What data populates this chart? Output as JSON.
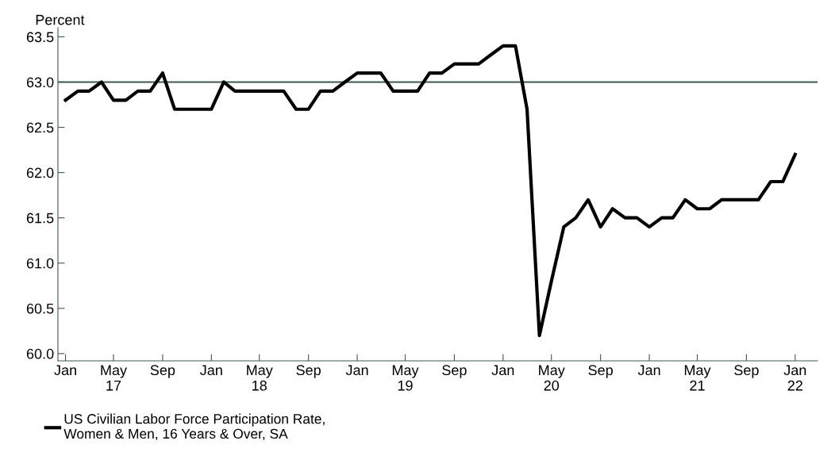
{
  "chart_data": {
    "type": "line",
    "ylabel": "Percent",
    "x": [
      "2017-01",
      "2017-02",
      "2017-03",
      "2017-04",
      "2017-05",
      "2017-06",
      "2017-07",
      "2017-08",
      "2017-09",
      "2017-10",
      "2017-11",
      "2017-12",
      "2018-01",
      "2018-02",
      "2018-03",
      "2018-04",
      "2018-05",
      "2018-06",
      "2018-07",
      "2018-08",
      "2018-09",
      "2018-10",
      "2018-11",
      "2018-12",
      "2019-01",
      "2019-02",
      "2019-03",
      "2019-04",
      "2019-05",
      "2019-06",
      "2019-07",
      "2019-08",
      "2019-09",
      "2019-10",
      "2019-11",
      "2019-12",
      "2020-01",
      "2020-02",
      "2020-03",
      "2020-04",
      "2020-05",
      "2020-06",
      "2020-07",
      "2020-08",
      "2020-09",
      "2020-10",
      "2020-11",
      "2020-12",
      "2021-01",
      "2021-02",
      "2021-03",
      "2021-04",
      "2021-05",
      "2021-06",
      "2021-07",
      "2021-08",
      "2021-09",
      "2021-10",
      "2021-11",
      "2021-12",
      "2022-01"
    ],
    "series": [
      {
        "name": "US Civilian Labor Force Participation Rate,\nWomen & Men, 16 Years & Over, SA",
        "color": "#000000",
        "values": [
          62.8,
          62.9,
          62.9,
          63.0,
          62.8,
          62.8,
          62.9,
          62.9,
          63.1,
          62.7,
          62.7,
          62.7,
          62.7,
          63.0,
          62.9,
          62.9,
          62.9,
          62.9,
          62.9,
          62.7,
          62.7,
          62.9,
          62.9,
          63.0,
          63.1,
          63.1,
          63.1,
          62.9,
          62.9,
          62.9,
          63.1,
          63.1,
          63.2,
          63.2,
          63.2,
          63.3,
          63.4,
          63.4,
          62.7,
          60.2,
          60.8,
          61.4,
          61.5,
          61.7,
          61.4,
          61.6,
          61.5,
          61.5,
          61.4,
          61.5,
          61.5,
          61.7,
          61.6,
          61.6,
          61.7,
          61.7,
          61.7,
          61.7,
          61.9,
          61.9,
          62.2
        ]
      }
    ],
    "ylim": [
      59.92,
      63.6
    ],
    "yticks": [
      {
        "value": 60,
        "label": "60.0"
      },
      {
        "value": 60.5,
        "label": "60.5"
      },
      {
        "value": 61,
        "label": "61.0"
      },
      {
        "value": 61.5,
        "label": "61.5"
      },
      {
        "value": 62,
        "label": "62.0"
      },
      {
        "value": 62.5,
        "label": "62.5"
      },
      {
        "value": 63,
        "label": "63.0"
      },
      {
        "value": 63.5,
        "label": "63.5"
      }
    ],
    "xlim": [
      "2016-12-13",
      "2022-02-26"
    ],
    "xticks": [
      {
        "value": "2017-01",
        "label": "Jan"
      },
      {
        "value": "2017-05",
        "label": "May\n17"
      },
      {
        "value": "2017-09",
        "label": "Sep"
      },
      {
        "value": "2018-01",
        "label": "Jan"
      },
      {
        "value": "2018-05",
        "label": "May\n18"
      },
      {
        "value": "2018-09",
        "label": "Sep"
      },
      {
        "value": "2019-01",
        "label": "Jan"
      },
      {
        "value": "2019-05",
        "label": "May\n19"
      },
      {
        "value": "2019-09",
        "label": "Sep"
      },
      {
        "value": "2020-01",
        "label": "Jan"
      },
      {
        "value": "2020-05",
        "label": "May\n20"
      },
      {
        "value": "2020-09",
        "label": "Sep"
      },
      {
        "value": "2021-01",
        "label": "Jan"
      },
      {
        "value": "2021-05",
        "label": "May\n21"
      },
      {
        "value": "2021-09",
        "label": "Sep"
      },
      {
        "value": "2022-01",
        "label": "Jan\n22"
      }
    ],
    "ref_lines": [
      {
        "axis": "y",
        "value": 63.0,
        "label": null,
        "color": "#3d5a4c"
      }
    ],
    "grid": false,
    "legend": "bottom left",
    "marker": "none",
    "line_style": "solid"
  }
}
